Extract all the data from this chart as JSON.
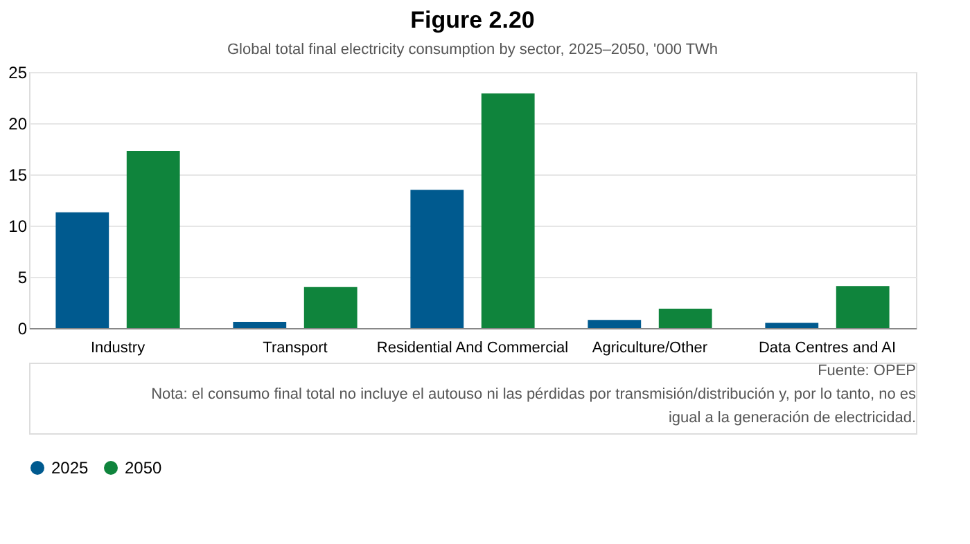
{
  "chart_data": {
    "type": "bar",
    "title": "Figure 2.20",
    "subtitle": "Global total final electricity consumption by sector, 2025–2050, '000 TWh",
    "categories": [
      "Industry",
      "Transport",
      "Residential And Commercial",
      "Agriculture/Other",
      "Data Centres and AI"
    ],
    "series": [
      {
        "name": "2025",
        "color": "#005a8f",
        "values": [
          11.3,
          0.6,
          13.5,
          0.8,
          0.5
        ]
      },
      {
        "name": "2050",
        "color": "#0f843c",
        "values": [
          17.3,
          4.0,
          22.9,
          1.9,
          4.1
        ]
      }
    ],
    "ylim": [
      0,
      25
    ],
    "yticks": [
      0,
      5,
      10,
      15,
      20,
      25
    ],
    "grid": "y",
    "legend": "bottom",
    "annotations": [
      "Fuente: OPEP",
      "Nota: el consumo final total no incluye el autouso ni las pérdidas por transmisión/distribución y, por lo tanto, no es igual a la generación de electricidad."
    ]
  }
}
